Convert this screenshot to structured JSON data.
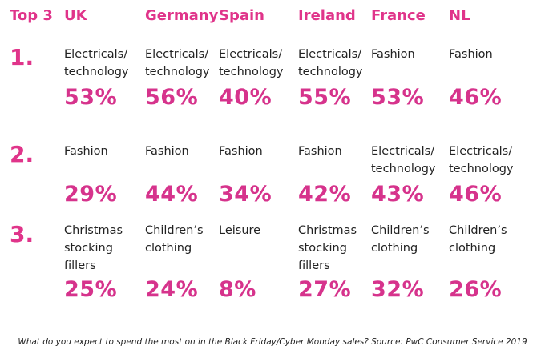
{
  "colors": {
    "header": "#e0348a",
    "rank": "#e0348a",
    "value": "#d6338c",
    "text": "#222222"
  },
  "chart_data": {
    "type": "table",
    "corner_label": "Top 3",
    "columns": [
      "UK",
      "Germany",
      "Spain",
      "Ireland",
      "France",
      "NL"
    ],
    "rows": [
      {
        "rank": "1.",
        "cells": [
          {
            "category": [
              "Electricals/",
              "technology"
            ],
            "value": "53%"
          },
          {
            "category": [
              "Electricals/",
              "technology"
            ],
            "value": "56%"
          },
          {
            "category": [
              "Electricals/",
              "technology"
            ],
            "value": "40%"
          },
          {
            "category": [
              "Electricals/",
              "technology"
            ],
            "value": "55%"
          },
          {
            "category": [
              "Fashion"
            ],
            "value": "53%"
          },
          {
            "category": [
              "Fashion"
            ],
            "value": "46%"
          }
        ]
      },
      {
        "rank": "2.",
        "cells": [
          {
            "category": [
              "Fashion"
            ],
            "value": "29%"
          },
          {
            "category": [
              "Fashion"
            ],
            "value": "44%"
          },
          {
            "category": [
              "Fashion"
            ],
            "value": "34%"
          },
          {
            "category": [
              "Fashion"
            ],
            "value": "42%"
          },
          {
            "category": [
              "Electricals/",
              "technology"
            ],
            "value": "43%"
          },
          {
            "category": [
              "Electricals/",
              "technology"
            ],
            "value": "46%"
          }
        ]
      },
      {
        "rank": "3.",
        "cells": [
          {
            "category": [
              "Christmas",
              "stocking",
              "fillers"
            ],
            "value": "25%"
          },
          {
            "category": [
              "Children’s",
              "clothing"
            ],
            "value": "24%"
          },
          {
            "category": [
              "Leisure"
            ],
            "value": "8%"
          },
          {
            "category": [
              "Christmas",
              "stocking",
              "fillers"
            ],
            "value": "27%"
          },
          {
            "category": [
              "Children’s",
              "clothing"
            ],
            "value": "32%"
          },
          {
            "category": [
              "Children’s",
              "clothing"
            ],
            "value": "26%"
          }
        ]
      }
    ],
    "footnote": "What do you expect to spend the most on in the Black Friday/Cyber Monday sales? Source: PwC Consumer Service 2019"
  }
}
